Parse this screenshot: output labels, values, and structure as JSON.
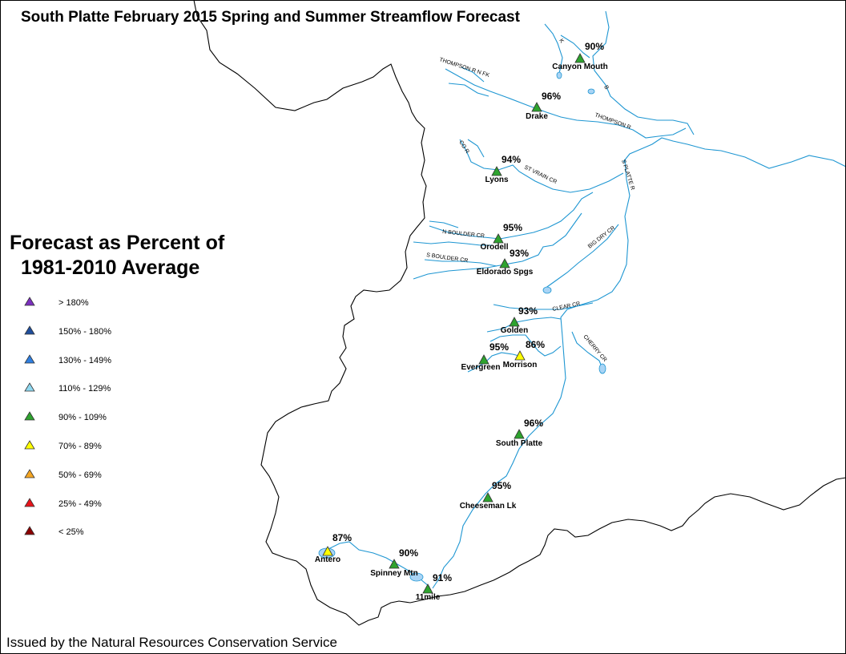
{
  "title": "South Platte February 2015 Spring and Summer Streamflow Forecast",
  "footer": "Issued by the Natural Resources Conservation Service",
  "legend": {
    "title_line1": "Forecast as Percent of",
    "title_line2": "1981-2010 Average",
    "items": [
      {
        "label": "> 180%",
        "color": "#7b2fbe"
      },
      {
        "label": "150% - 180%",
        "color": "#1f4e9c"
      },
      {
        "label": "130% - 149%",
        "color": "#2f7fe0"
      },
      {
        "label": "110% - 129%",
        "color": "#8fd8f0"
      },
      {
        "label": "90% - 109%",
        "color": "#2ea32e"
      },
      {
        "label": "70% - 89%",
        "color": "#ffff00"
      },
      {
        "label": "50% - 69%",
        "color": "#f5a623"
      },
      {
        "label": "25% - 49%",
        "color": "#e8141b"
      },
      {
        "label": "< 25%",
        "color": "#8b0000"
      }
    ]
  },
  "stations": [
    {
      "name": "Canyon Mouth",
      "percent": "90%",
      "color": "#2ea32e"
    },
    {
      "name": "Drake",
      "percent": "96%",
      "color": "#2ea32e"
    },
    {
      "name": "Lyons",
      "percent": "94%",
      "color": "#2ea32e"
    },
    {
      "name": "Orodell",
      "percent": "95%",
      "color": "#2ea32e"
    },
    {
      "name": "Eldorado Spgs",
      "percent": "93%",
      "color": "#2ea32e"
    },
    {
      "name": "Golden",
      "percent": "93%",
      "color": "#2ea32e"
    },
    {
      "name": "Evergreen",
      "percent": "95%",
      "color": "#2ea32e"
    },
    {
      "name": "Morrison",
      "percent": "86%",
      "color": "#ffff00"
    },
    {
      "name": "South Platte",
      "percent": "96%",
      "color": "#2ea32e"
    },
    {
      "name": "Cheeseman Lk",
      "percent": "95%",
      "color": "#2ea32e"
    },
    {
      "name": "Antero",
      "percent": "87%",
      "color": "#ffff00"
    },
    {
      "name": "Spinney Mtn",
      "percent": "90%",
      "color": "#2ea32e"
    },
    {
      "name": "11mile",
      "percent": "91%",
      "color": "#2ea32e"
    }
  ],
  "river_labels": [
    "THOMPSON R N FK",
    "THOMPSON R",
    "CO R",
    "ST VRAIN CR",
    "S PLATTE R",
    "N BOULDER CR",
    "S BOULDER CR",
    "BIG DRY CR",
    "CLEAR CR",
    "CHERRY CR",
    "K",
    "B"
  ],
  "colors": {
    "river": "#1e96d2",
    "lake": "#a9d4f5",
    "boundary": "#000000"
  }
}
